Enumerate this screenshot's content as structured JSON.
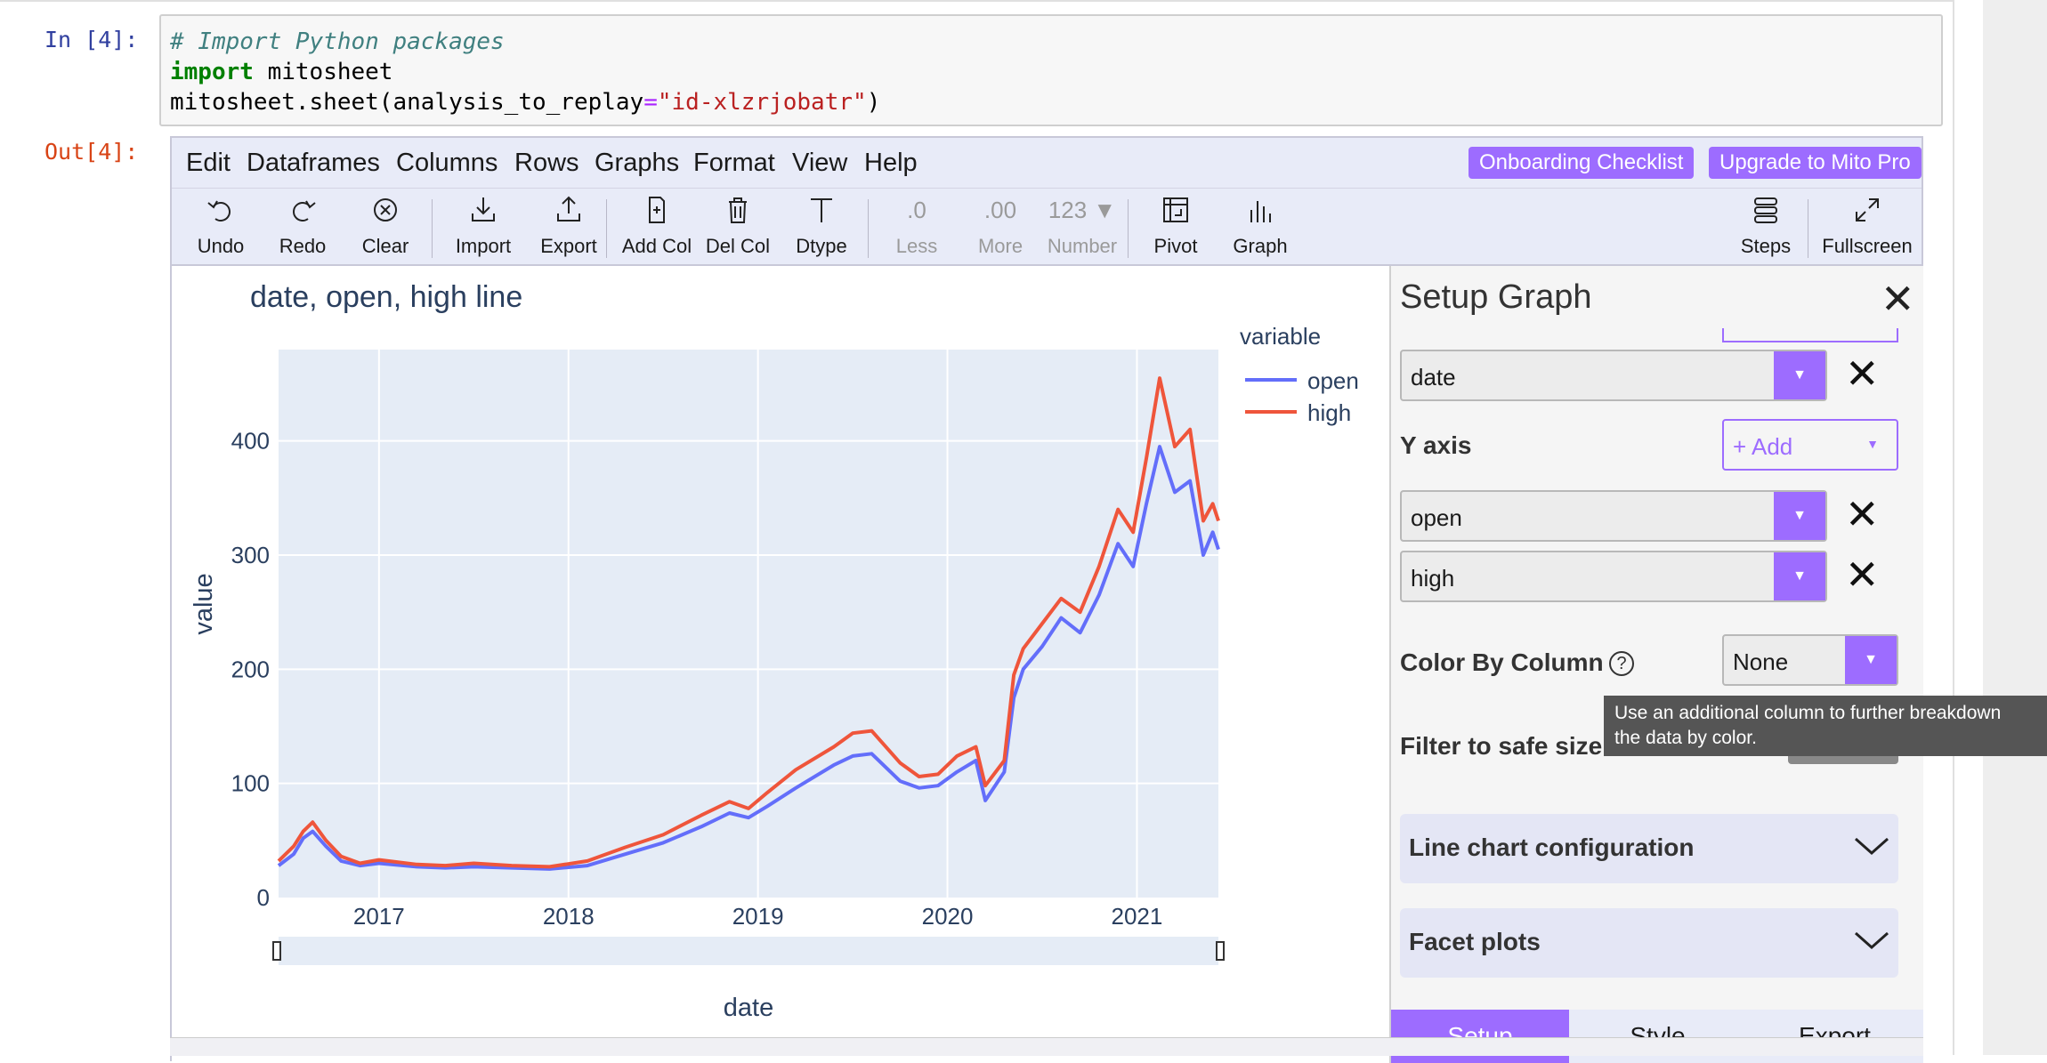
{
  "notebook": {
    "in_prompt": "In [4]:",
    "out_prompt": "Out[4]:",
    "code": {
      "line1": "# Import Python packages",
      "line2_kw": "import",
      "line2_rest": " mitosheet",
      "line3_pre": "mitosheet.sheet(analysis_to_replay",
      "line3_op": "=",
      "line3_str": "\"id-xlzrjobatr\"",
      "line3_post": ")"
    }
  },
  "menu": {
    "items": [
      "Edit",
      "Dataframes",
      "Columns",
      "Rows",
      "Graphs",
      "Format",
      "View",
      "Help"
    ],
    "onboarding": "Onboarding Checklist",
    "upgrade": "Upgrade to Mito Pro"
  },
  "toolbar": {
    "undo": "Undo",
    "redo": "Redo",
    "clear": "Clear",
    "import": "Import",
    "export": "Export",
    "add_col": "Add Col",
    "del_col": "Del Col",
    "dtype": "Dtype",
    "less": "Less",
    "less_glyph": ".0",
    "more": "More",
    "more_glyph": ".00",
    "number": "Number",
    "number_glyph": "123 ▼",
    "pivot": "Pivot",
    "graph": "Graph",
    "steps": "Steps",
    "fullscreen": "Fullscreen"
  },
  "chart_data": {
    "type": "line",
    "title": "date, open, high line",
    "xlabel": "date",
    "ylabel": "value",
    "legend_title": "variable",
    "legend_placement": "top-right",
    "xlim": [
      2016.47,
      2021.43
    ],
    "ylim": [
      0,
      480
    ],
    "x_ticks": [
      "2017",
      "2018",
      "2019",
      "2020",
      "2021"
    ],
    "y_ticks": [
      "0",
      "100",
      "200",
      "300",
      "400"
    ],
    "grid": true,
    "series": [
      {
        "name": "open",
        "color": "#636efa",
        "x": [
          2016.47,
          2016.55,
          2016.6,
          2016.65,
          2016.72,
          2016.8,
          2016.9,
          2017.0,
          2017.2,
          2017.35,
          2017.5,
          2017.7,
          2017.9,
          2018.1,
          2018.3,
          2018.5,
          2018.7,
          2018.85,
          2018.95,
          2019.05,
          2019.2,
          2019.4,
          2019.5,
          2019.6,
          2019.75,
          2019.85,
          2019.95,
          2020.05,
          2020.15,
          2020.2,
          2020.3,
          2020.35,
          2020.4,
          2020.5,
          2020.6,
          2020.7,
          2020.8,
          2020.9,
          2020.98,
          2021.05,
          2021.12,
          2021.2,
          2021.28,
          2021.35,
          2021.4,
          2021.43
        ],
        "y": [
          28,
          38,
          52,
          58,
          45,
          32,
          28,
          30,
          27,
          26,
          27,
          26,
          25,
          28,
          38,
          48,
          62,
          74,
          70,
          80,
          96,
          116,
          124,
          126,
          102,
          96,
          98,
          110,
          120,
          85,
          110,
          175,
          200,
          220,
          245,
          232,
          265,
          310,
          290,
          345,
          395,
          355,
          365,
          300,
          320,
          305
        ]
      },
      {
        "name": "high",
        "color": "#ef553b",
        "x": [
          2016.47,
          2016.55,
          2016.6,
          2016.65,
          2016.72,
          2016.8,
          2016.9,
          2017.0,
          2017.2,
          2017.35,
          2017.5,
          2017.7,
          2017.9,
          2018.1,
          2018.3,
          2018.5,
          2018.7,
          2018.85,
          2018.95,
          2019.05,
          2019.2,
          2019.4,
          2019.5,
          2019.6,
          2019.75,
          2019.85,
          2019.95,
          2020.05,
          2020.15,
          2020.2,
          2020.3,
          2020.35,
          2020.4,
          2020.5,
          2020.6,
          2020.7,
          2020.8,
          2020.9,
          2020.98,
          2021.05,
          2021.12,
          2021.2,
          2021.28,
          2021.35,
          2021.4,
          2021.43
        ],
        "y": [
          32,
          45,
          58,
          66,
          50,
          36,
          30,
          33,
          29,
          28,
          30,
          28,
          27,
          32,
          44,
          55,
          72,
          84,
          78,
          92,
          112,
          132,
          144,
          146,
          118,
          106,
          108,
          124,
          132,
          98,
          120,
          195,
          218,
          240,
          262,
          250,
          290,
          340,
          320,
          385,
          455,
          395,
          410,
          330,
          345,
          330
        ]
      }
    ]
  },
  "sidebar": {
    "title": "Setup Graph",
    "x_value": "date",
    "y_label": "Y axis",
    "add_label": "+ Add",
    "y_values": [
      "open",
      "high"
    ],
    "color_label": "Color By Column",
    "color_value": "None",
    "filter_label": "Filter to safe size",
    "tooltip_line1": "Use an additional column to further breakdown",
    "tooltip_line2": "the data by color.",
    "line_config": "Line chart configuration",
    "facet": "Facet plots",
    "tabs": [
      "Setup",
      "Style",
      "Export"
    ]
  }
}
